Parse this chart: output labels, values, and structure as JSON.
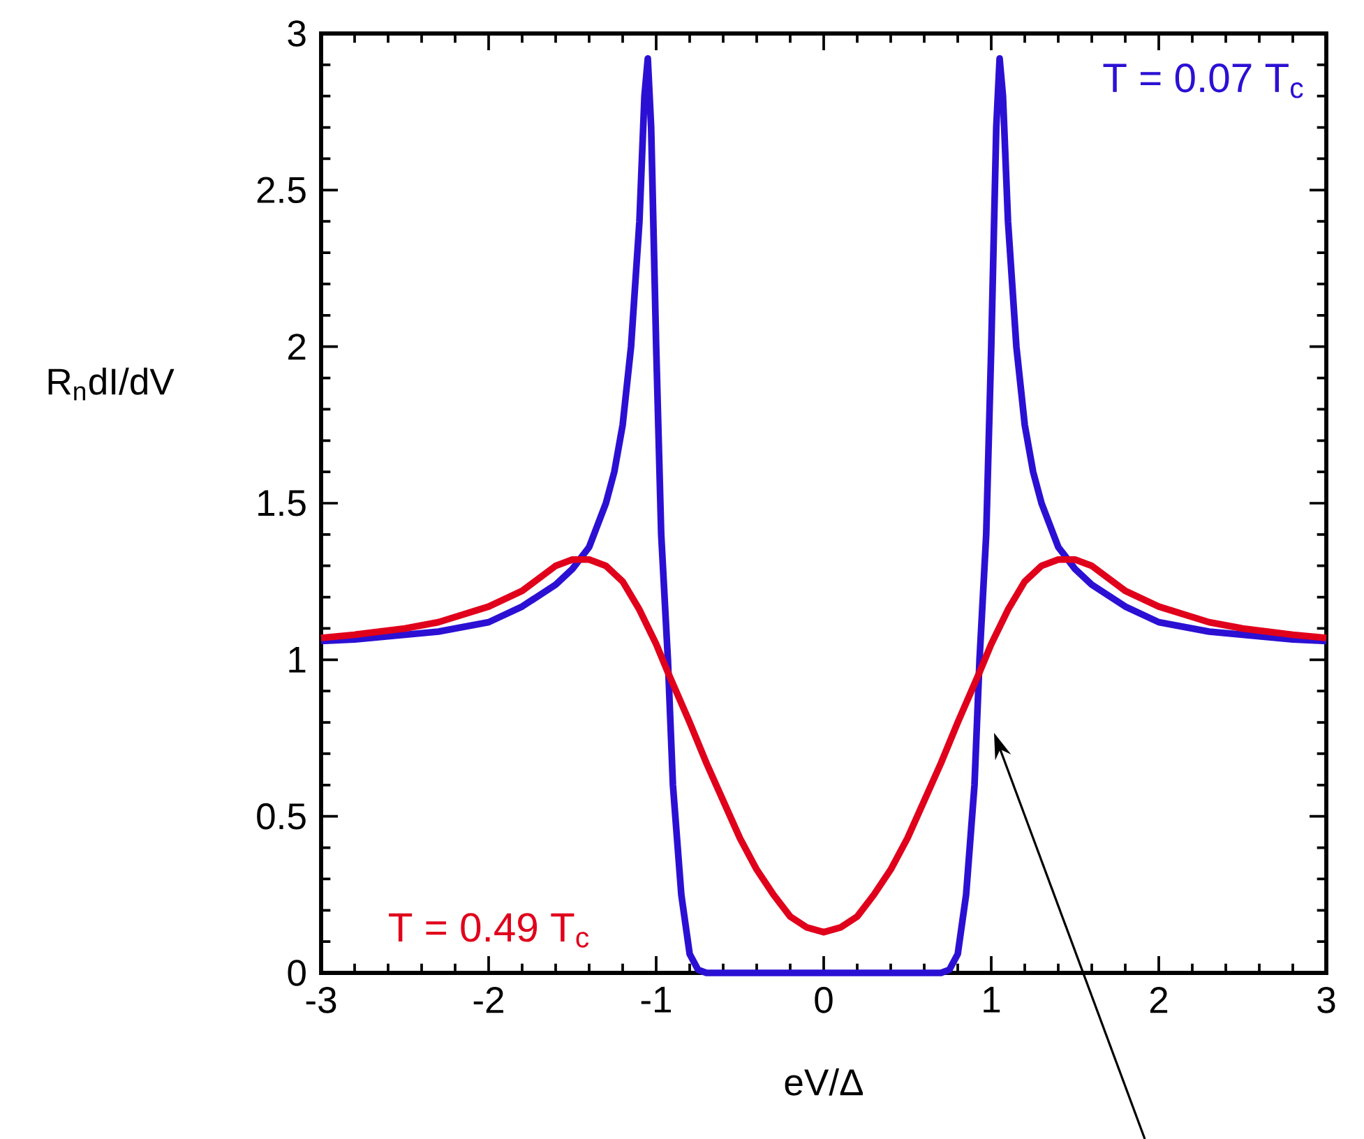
{
  "chart_data": {
    "type": "line",
    "xlabel": "eV/Δ",
    "ylabel": "R$_{n}$dI/dV",
    "xlim": [
      -3,
      3
    ],
    "ylim": [
      0,
      3
    ],
    "xticks": [
      -3,
      -2,
      -1,
      0,
      1,
      2,
      3
    ],
    "yticks": [
      0,
      0.5,
      1,
      1.5,
      2,
      2.5,
      3
    ],
    "grid": false,
    "legend": false,
    "series": [
      {
        "name": "T = 0.07 T$_{c}$",
        "color": "#2b10d4",
        "x": [
          -3,
          -2.8,
          -2.5,
          -2.3,
          -2,
          -1.8,
          -1.6,
          -1.5,
          -1.4,
          -1.3,
          -1.25,
          -1.2,
          -1.15,
          -1.1,
          -1.07,
          -1.05,
          -1.03,
          -1.0,
          -0.97,
          -0.93,
          -0.9,
          -0.85,
          -0.8,
          -0.75,
          -0.7,
          0,
          0.7,
          0.75,
          0.8,
          0.85,
          0.9,
          0.93,
          0.97,
          1.0,
          1.03,
          1.05,
          1.07,
          1.1,
          1.15,
          1.2,
          1.25,
          1.3,
          1.4,
          1.5,
          1.6,
          1.8,
          2,
          2.3,
          2.5,
          2.8,
          3
        ],
        "values": [
          1.06,
          1.065,
          1.08,
          1.09,
          1.12,
          1.17,
          1.24,
          1.29,
          1.36,
          1.5,
          1.6,
          1.75,
          2.0,
          2.4,
          2.8,
          2.92,
          2.7,
          2.0,
          1.4,
          1.0,
          0.6,
          0.25,
          0.06,
          0.01,
          0,
          0,
          0,
          0.01,
          0.06,
          0.25,
          0.6,
          1.0,
          1.4,
          2.0,
          2.7,
          2.92,
          2.8,
          2.4,
          2.0,
          1.75,
          1.6,
          1.5,
          1.36,
          1.29,
          1.24,
          1.17,
          1.12,
          1.09,
          1.08,
          1.065,
          1.06
        ]
      },
      {
        "name": "T = 0.49 T$_{c}$",
        "color": "#e0001b",
        "x": [
          -3,
          -2.8,
          -2.5,
          -2.3,
          -2,
          -1.8,
          -1.7,
          -1.6,
          -1.5,
          -1.4,
          -1.3,
          -1.2,
          -1.1,
          -1.0,
          -0.93,
          -0.8,
          -0.7,
          -0.6,
          -0.5,
          -0.4,
          -0.3,
          -0.2,
          -0.1,
          0,
          0.1,
          0.2,
          0.3,
          0.4,
          0.5,
          0.6,
          0.7,
          0.8,
          0.93,
          1.0,
          1.1,
          1.2,
          1.3,
          1.4,
          1.5,
          1.6,
          1.7,
          1.8,
          2,
          2.3,
          2.5,
          2.8,
          3
        ],
        "values": [
          1.07,
          1.08,
          1.1,
          1.12,
          1.17,
          1.22,
          1.26,
          1.3,
          1.32,
          1.32,
          1.3,
          1.25,
          1.16,
          1.05,
          0.96,
          0.8,
          0.67,
          0.55,
          0.43,
          0.33,
          0.25,
          0.18,
          0.145,
          0.13,
          0.145,
          0.18,
          0.25,
          0.33,
          0.43,
          0.55,
          0.67,
          0.8,
          0.96,
          1.05,
          1.16,
          1.25,
          1.3,
          1.32,
          1.32,
          1.3,
          1.26,
          1.22,
          1.17,
          1.12,
          1.1,
          1.08,
          1.07
        ]
      }
    ]
  }
}
